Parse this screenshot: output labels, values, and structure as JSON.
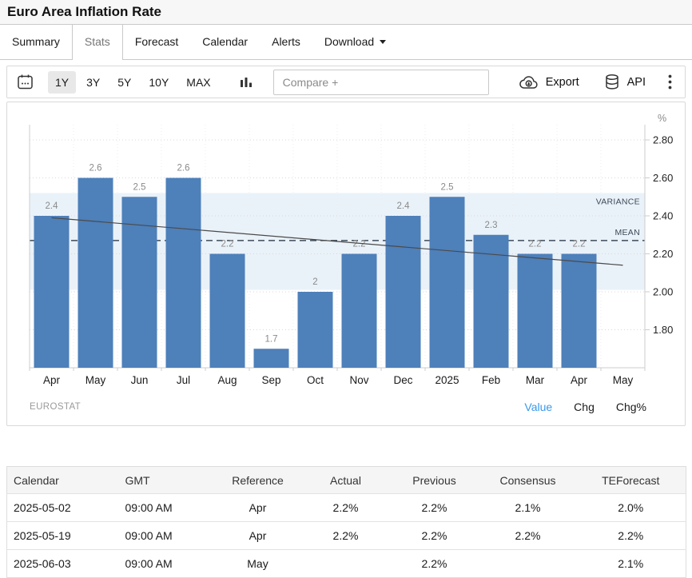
{
  "header": {
    "title": "Euro Area Inflation Rate"
  },
  "tabs": {
    "items": [
      "Summary",
      "Stats",
      "Forecast",
      "Calendar",
      "Alerts",
      "Download"
    ],
    "active": "Stats",
    "dropdown": "Download"
  },
  "toolbar": {
    "ranges": [
      "1Y",
      "3Y",
      "5Y",
      "10Y",
      "MAX"
    ],
    "active_range": "1Y",
    "compare_placeholder": "Compare +",
    "export_label": "Export",
    "api_label": "API"
  },
  "chart_data": {
    "type": "bar",
    "title": "Euro Area Inflation Rate",
    "unit": "%",
    "categories": [
      "Apr",
      "May",
      "Jun",
      "Jul",
      "Aug",
      "Sep",
      "Oct",
      "Nov",
      "Dec",
      "2025",
      "Feb",
      "Mar",
      "Apr",
      "May"
    ],
    "values": [
      2.4,
      2.6,
      2.5,
      2.6,
      2.2,
      1.7,
      2,
      2.2,
      2.4,
      2.5,
      2.3,
      2.2,
      2.2,
      null
    ],
    "bar_labels": [
      "2.4",
      "2.6",
      "2.5",
      "2.6",
      "2.2",
      "1.7",
      "2",
      "2.2",
      "2.4",
      "2.5",
      "2.3",
      "2.2",
      "2.2",
      null
    ],
    "ylim": [
      1.6,
      2.9
    ],
    "ytick_labels": [
      "2.80",
      "2.60",
      "2.40",
      "2.20",
      "2.00",
      "1.80"
    ],
    "grid": true,
    "legend_position": "none",
    "mean": 2.27,
    "variance_band": [
      2.01,
      2.52
    ],
    "trend_line": {
      "start": 2.39,
      "end": 2.14
    },
    "annotations": {
      "variance_label": "VARIANCE",
      "mean_label": "MEAN"
    },
    "source": "EUROSTAT",
    "footer_links": [
      "Value",
      "Chg",
      "Chg%"
    ],
    "active_link": "Value",
    "bar_color": "#4e80ba",
    "band_color": "#eaf2f9",
    "value_label_color": "#8a8a8a",
    "accent_color": "#3898ec"
  },
  "table": {
    "headers": [
      "Calendar",
      "GMT",
      "Reference",
      "Actual",
      "Previous",
      "Consensus",
      "TEForecast"
    ],
    "rows": [
      [
        "2025-05-02",
        "09:00 AM",
        "Apr",
        "2.2%",
        "2.2%",
        "2.1%",
        "2.0%"
      ],
      [
        "2025-05-19",
        "09:00 AM",
        "Apr",
        "2.2%",
        "2.2%",
        "2.2%",
        "2.2%"
      ],
      [
        "2025-06-03",
        "09:00 AM",
        "May",
        "",
        "2.2%",
        "",
        "2.1%"
      ]
    ]
  }
}
